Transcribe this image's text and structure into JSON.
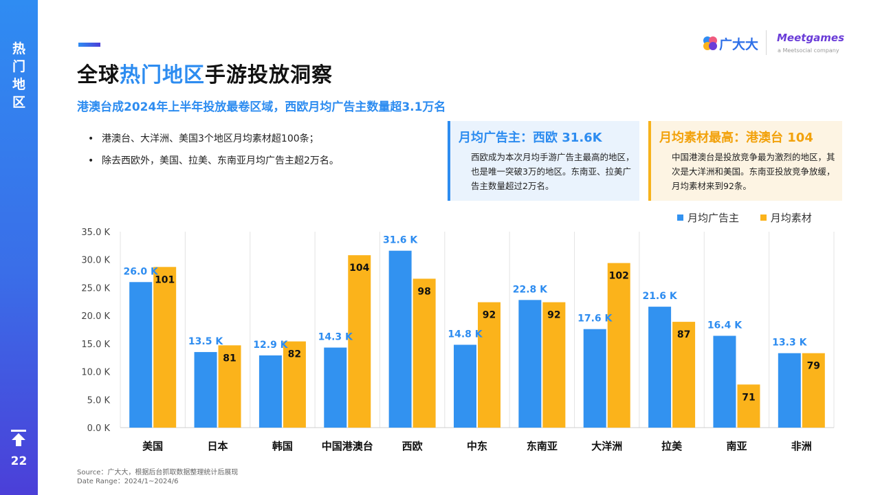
{
  "sidebar": {
    "section": "热\n门\n地\n区",
    "page_number": "22"
  },
  "header": {
    "title_prefix": "全球",
    "title_highlight": "热门地区",
    "title_suffix": "手游投放洞察",
    "subtitle": "港澳台成2024年上半年投放最卷区域，西欧月均广告主数量超3.1万名"
  },
  "bullets": [
    "港澳台、大洋洲、美国3个地区月均素材超100条；",
    "除去西欧外，美国、拉美、东南亚月均广告主超2万名。"
  ],
  "cards": [
    {
      "title": "月均广告主：西欧 31.6K",
      "body": "西欧成为本次月均手游广告主最高的地区，也是唯一突破3万的地区。东南亚、拉美广告主数量超过2万名。"
    },
    {
      "title": "月均素材最高：港澳台 104",
      "body": "中国港澳台是投放竞争最为激烈的地区，其次是大洋洲和美国。东南亚投放竞争放缓，月均素材来到92条。"
    }
  ],
  "brand": {
    "logo_text": "广大大",
    "partner_logo": "Meetgames",
    "partner_sub": "a Meetsocial company"
  },
  "source": {
    "line1": "Source：广大大，根据后台抓取数据整理统计后展现",
    "line2": "Date Range：2024/1~2024/6"
  },
  "colors": {
    "advertisers": "#3292f0",
    "materials": "#fbb31b",
    "accent": "#2d8cf0"
  },
  "chart_data": {
    "type": "bar",
    "categories": [
      "美国",
      "日本",
      "韩国",
      "中国港澳台",
      "西欧",
      "中东",
      "东南亚",
      "大洋洲",
      "拉美",
      "南亚",
      "非洲"
    ],
    "series": [
      {
        "name": "月均广告主",
        "values": [
          26.0,
          13.5,
          12.9,
          14.3,
          31.6,
          14.8,
          22.8,
          17.6,
          21.6,
          16.4,
          13.3
        ],
        "labels": [
          "26.0 K",
          "13.5 K",
          "12.9 K",
          "14.3 K",
          "31.6 K",
          "14.8 K",
          "22.8 K",
          "17.6 K",
          "21.6 K",
          "16.4 K",
          "13.3 K"
        ],
        "axis": "left"
      },
      {
        "name": "月均素材",
        "values": [
          101,
          81,
          82,
          104,
          98,
          92,
          92,
          102,
          87,
          71,
          79
        ],
        "labels": [
          "101",
          "81",
          "82",
          "104",
          "98",
          "92",
          "92",
          "102",
          "87",
          "71",
          "79"
        ],
        "axis": "right",
        "scale_note": "drawn on an implicit secondary scale"
      }
    ],
    "y_ticks": [
      "35.0 K",
      "30.0 K",
      "25.0 K",
      "20.0 K",
      "15.0 K",
      "10.0 K",
      "5.0 K",
      "0.0 K"
    ],
    "ylim": [
      0,
      35
    ],
    "y2lim": [
      60,
      110
    ],
    "grid": "vertical lines between categories",
    "legend": "top-right"
  }
}
